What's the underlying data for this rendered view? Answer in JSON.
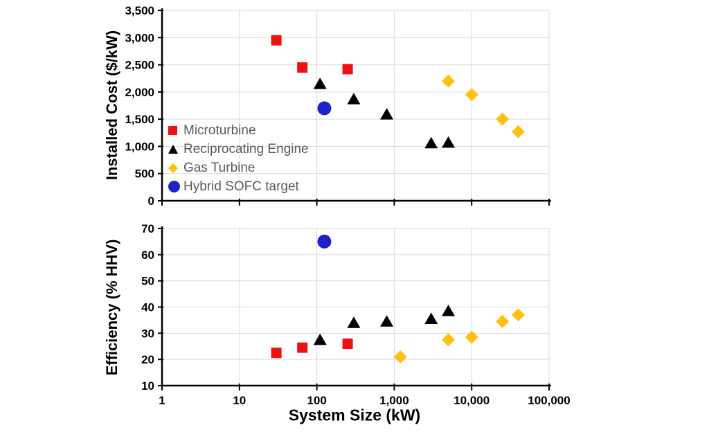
{
  "figure": {
    "background": "#ffffff",
    "x_axis_title": "System Size (kW)"
  },
  "colors": {
    "microturbine": "#ee1111",
    "reciprocating_engine": "#000000",
    "gas_turbine": "#ffc010",
    "hybrid_sofc": "#1f22c8",
    "gridline": "#d9d9d9",
    "axis": "#000000",
    "legend_text": "#595959",
    "tick_label": "#000000"
  },
  "legend": {
    "items": [
      {
        "label": "Microturbine",
        "marker": "square",
        "color": "#ee1111"
      },
      {
        "label": "Reciprocating Engine",
        "marker": "triangle",
        "color": "#000000"
      },
      {
        "label": "Gas Turbine",
        "marker": "diamond",
        "color": "#ffc010"
      },
      {
        "label": "Hybrid SOFC target",
        "marker": "circle",
        "color": "#1f22c8"
      }
    ],
    "position": "inside-lower-left-of-top-chart"
  },
  "chart_data": [
    {
      "type": "scatter",
      "title": "",
      "ylabel": "Installed Cost ($/kW)",
      "xlabel": "",
      "x_scale": "log",
      "xlim": [
        1,
        100000
      ],
      "ylim": [
        0,
        3500
      ],
      "grid": true,
      "show_x_tick_labels": false,
      "yticks": [
        [
          0,
          "0"
        ],
        [
          500,
          "500"
        ],
        [
          1000,
          "1,000"
        ],
        [
          1500,
          "1,500"
        ],
        [
          2000,
          "2,000"
        ],
        [
          2500,
          "2,500"
        ],
        [
          3000,
          "3,000"
        ],
        [
          3500,
          "3,500"
        ]
      ],
      "xticks": [
        [
          1,
          "1"
        ],
        [
          10,
          "10"
        ],
        [
          100,
          "100"
        ],
        [
          1000,
          "1,000"
        ],
        [
          10000,
          "10,000"
        ],
        [
          100000,
          "100,000"
        ]
      ],
      "series": [
        {
          "name": "Microturbine",
          "marker": "square",
          "color": "#ee1111",
          "points": [
            [
              30,
              2950
            ],
            [
              65,
              2450
            ],
            [
              250,
              2420
            ]
          ]
        },
        {
          "name": "Reciprocating Engine",
          "marker": "triangle",
          "color": "#000000",
          "points": [
            [
              110,
              2150
            ],
            [
              300,
              1870
            ],
            [
              800,
              1590
            ],
            [
              3000,
              1060
            ],
            [
              5000,
              1070
            ]
          ]
        },
        {
          "name": "Gas Turbine",
          "marker": "diamond",
          "color": "#ffc010",
          "points": [
            [
              5000,
              2200
            ],
            [
              10000,
              1950
            ],
            [
              25000,
              1500
            ],
            [
              40000,
              1270
            ]
          ]
        },
        {
          "name": "Hybrid SOFC target",
          "marker": "circle",
          "color": "#1f22c8",
          "points": [
            [
              125,
              1700
            ]
          ]
        }
      ]
    },
    {
      "type": "scatter",
      "title": "",
      "ylabel": "Efficiency (% HHV)",
      "xlabel": "System Size (kW)",
      "x_scale": "log",
      "xlim": [
        1,
        100000
      ],
      "ylim": [
        10,
        70
      ],
      "grid": true,
      "show_x_tick_labels": true,
      "yticks": [
        [
          10,
          "10"
        ],
        [
          20,
          "20"
        ],
        [
          30,
          "30"
        ],
        [
          40,
          "40"
        ],
        [
          50,
          "50"
        ],
        [
          60,
          "60"
        ],
        [
          70,
          "70"
        ]
      ],
      "xticks": [
        [
          1,
          "1"
        ],
        [
          10,
          "10"
        ],
        [
          100,
          "100"
        ],
        [
          1000,
          "1,000"
        ],
        [
          10000,
          "10,000"
        ],
        [
          100000,
          "100,000"
        ]
      ],
      "series": [
        {
          "name": "Microturbine",
          "marker": "square",
          "color": "#ee1111",
          "points": [
            [
              30,
              22.5
            ],
            [
              65,
              24.5
            ],
            [
              250,
              26
            ]
          ]
        },
        {
          "name": "Reciprocating Engine",
          "marker": "triangle",
          "color": "#000000",
          "points": [
            [
              110,
              27.5
            ],
            [
              300,
              34
            ],
            [
              800,
              34.5
            ],
            [
              3000,
              35.5
            ],
            [
              5000,
              38.5
            ]
          ]
        },
        {
          "name": "Gas Turbine",
          "marker": "diamond",
          "color": "#ffc010",
          "points": [
            [
              1200,
              21
            ],
            [
              5000,
              27.5
            ],
            [
              10000,
              28.5
            ],
            [
              25000,
              34.5
            ],
            [
              40000,
              37
            ]
          ]
        },
        {
          "name": "Hybrid SOFC target",
          "marker": "circle",
          "color": "#1f22c8",
          "points": [
            [
              125,
              65
            ]
          ]
        }
      ]
    }
  ]
}
